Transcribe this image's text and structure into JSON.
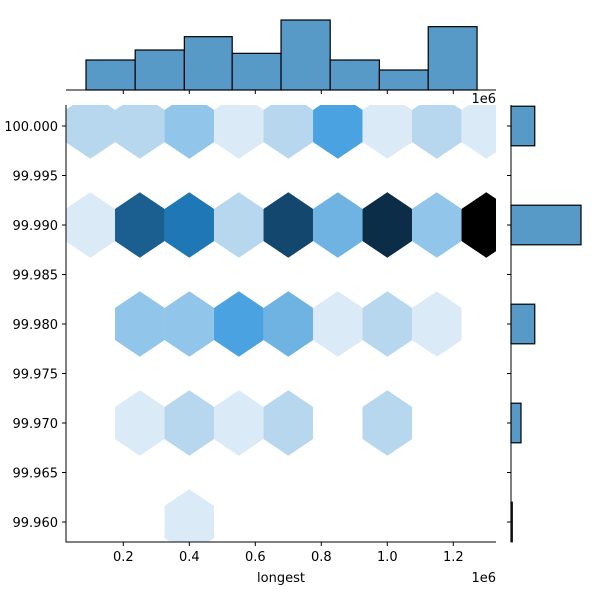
{
  "chart_data": {
    "type": "hexbin-joint",
    "title": "",
    "xlabel": "longest",
    "ylabel": "",
    "x_offset_label": "1e6",
    "top_offset_label": "1e6",
    "xlim": [
      0.03,
      1.33
    ],
    "ylim": [
      99.9582,
      100.0021
    ],
    "x_units": "millions (1e6)",
    "x_ticks": [
      0.2,
      0.4,
      0.6,
      0.8,
      1.0,
      1.2
    ],
    "x_tick_labels": [
      "0.2",
      "0.4",
      "0.6",
      "0.8",
      "1.0",
      "1.2"
    ],
    "y_ticks": [
      100.0,
      99.995,
      99.99,
      99.985,
      99.98,
      99.975,
      99.97,
      99.965,
      99.96
    ],
    "y_tick_labels": [
      "100.000",
      "99.995",
      "99.990",
      "99.985",
      "99.980",
      "99.975",
      "99.970",
      "99.965",
      "99.960"
    ],
    "grid": false,
    "colormap": "Blues",
    "hexbins": [
      {
        "x": 0.1,
        "y": 100.0,
        "color": "#b7d7ef"
      },
      {
        "x": 0.25,
        "y": 100.0,
        "color": "#b7d7ef"
      },
      {
        "x": 0.4,
        "y": 100.0,
        "color": "#91c5ea"
      },
      {
        "x": 0.55,
        "y": 100.0,
        "color": "#dbeaf7"
      },
      {
        "x": 0.7,
        "y": 100.0,
        "color": "#b7d7ef"
      },
      {
        "x": 0.85,
        "y": 100.0,
        "color": "#4aa2e0"
      },
      {
        "x": 1.0,
        "y": 100.0,
        "color": "#dbeaf7"
      },
      {
        "x": 1.15,
        "y": 100.0,
        "color": "#b7d7ef"
      },
      {
        "x": 1.3,
        "y": 100.0,
        "color": "#dbeaf7"
      },
      {
        "x": 0.1,
        "y": 99.99,
        "color": "#dbeaf7"
      },
      {
        "x": 0.25,
        "y": 99.99,
        "color": "#1b5e90"
      },
      {
        "x": 0.4,
        "y": 99.99,
        "color": "#2077b6"
      },
      {
        "x": 0.55,
        "y": 99.99,
        "color": "#b7d7ef"
      },
      {
        "x": 0.7,
        "y": 99.99,
        "color": "#14476d"
      },
      {
        "x": 0.85,
        "y": 99.99,
        "color": "#6fb3e3"
      },
      {
        "x": 1.0,
        "y": 99.99,
        "color": "#0c2d47"
      },
      {
        "x": 1.15,
        "y": 99.99,
        "color": "#91c5ea"
      },
      {
        "x": 1.3,
        "y": 99.99,
        "color": "#000000"
      },
      {
        "x": 0.25,
        "y": 99.98,
        "color": "#91c5ea"
      },
      {
        "x": 0.4,
        "y": 99.98,
        "color": "#91c5ea"
      },
      {
        "x": 0.55,
        "y": 99.98,
        "color": "#4aa2e0"
      },
      {
        "x": 0.7,
        "y": 99.98,
        "color": "#6fb3e3"
      },
      {
        "x": 0.85,
        "y": 99.98,
        "color": "#dbeaf7"
      },
      {
        "x": 1.0,
        "y": 99.98,
        "color": "#b7d7ef"
      },
      {
        "x": 1.15,
        "y": 99.98,
        "color": "#dbeaf7"
      },
      {
        "x": 0.25,
        "y": 99.97,
        "color": "#dbeaf7"
      },
      {
        "x": 0.4,
        "y": 99.97,
        "color": "#b7d7ef"
      },
      {
        "x": 0.55,
        "y": 99.97,
        "color": "#dbeaf7"
      },
      {
        "x": 0.7,
        "y": 99.97,
        "color": "#b7d7ef"
      },
      {
        "x": 1.0,
        "y": 99.97,
        "color": "#b7d7ef"
      },
      {
        "x": 0.4,
        "y": 99.96,
        "color": "#dbeaf7"
      }
    ],
    "marginal_x": {
      "type": "bar",
      "bin_edges": [
        0.087,
        0.236,
        0.385,
        0.53,
        0.678,
        0.827,
        0.976,
        1.124,
        1.272
      ],
      "values": [
        9,
        12,
        16,
        11,
        21,
        9,
        6,
        19
      ],
      "color": "#5799c7",
      "edgecolor": "#000000"
    },
    "marginal_y": {
      "type": "bar",
      "bins": [
        {
          "y_low": 99.998,
          "y_high": 100.002,
          "value": 19
        },
        {
          "y_low": 99.988,
          "y_high": 99.992,
          "value": 56
        },
        {
          "y_low": 99.978,
          "y_high": 99.982,
          "value": 19
        },
        {
          "y_low": 99.968,
          "y_high": 99.972,
          "value": 8
        },
        {
          "y_low": 99.958,
          "y_high": 99.962,
          "value": 1
        }
      ],
      "color": "#5799c7",
      "edgecolor": "#000000"
    }
  }
}
